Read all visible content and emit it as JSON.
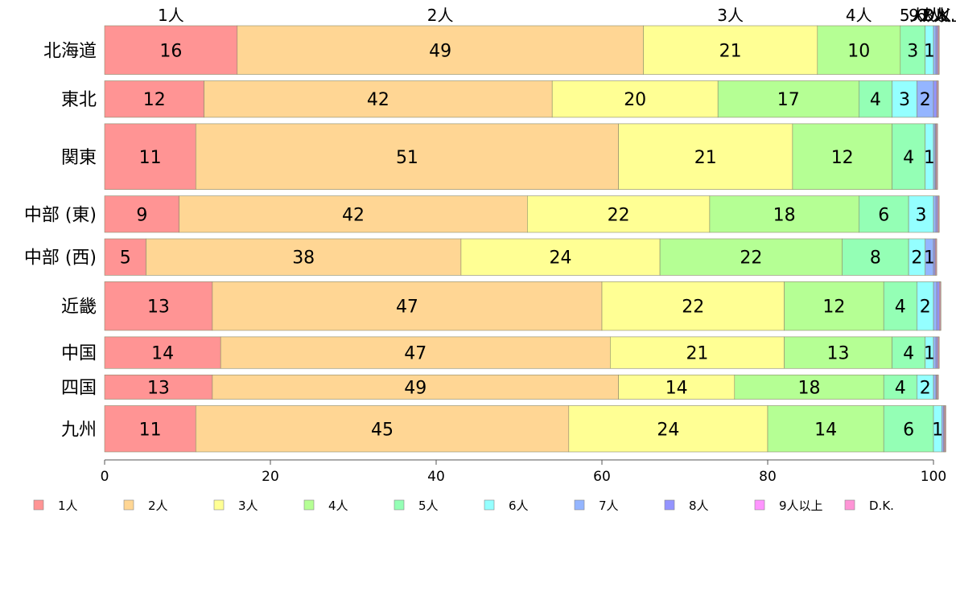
{
  "chart_data": {
    "type": "bar",
    "orientation": "horizontal",
    "stacked": true,
    "title": "",
    "xlabel": "",
    "ylabel": "",
    "xlim": [
      0,
      100
    ],
    "x_ticks": [
      0,
      20,
      40,
      60,
      80,
      100
    ],
    "grid": false,
    "legend_position": "bottom",
    "categories": [
      "北海道",
      "東北",
      "関東",
      "中部 (東)",
      "中部 (西)",
      "近畿",
      "中国",
      "四国",
      "九州"
    ],
    "category_weights": [
      1.0,
      0.75,
      1.35,
      0.75,
      0.75,
      1.0,
      0.65,
      0.5,
      0.95
    ],
    "series": [
      {
        "name": "1人",
        "color": "#ff9494",
        "values": [
          16,
          12,
          11,
          9,
          5,
          13,
          14,
          13,
          11
        ]
      },
      {
        "name": "2人",
        "color": "#ffd694",
        "values": [
          49,
          42,
          51,
          42,
          38,
          47,
          47,
          49,
          45
        ]
      },
      {
        "name": "3人",
        "color": "#ffff94",
        "values": [
          21,
          20,
          21,
          22,
          24,
          22,
          21,
          14,
          24
        ]
      },
      {
        "name": "4人",
        "color": "#b5ff94",
        "values": [
          10,
          17,
          12,
          18,
          22,
          12,
          13,
          18,
          14
        ]
      },
      {
        "name": "5人",
        "color": "#94ffb5",
        "values": [
          3,
          4,
          4,
          6,
          8,
          4,
          4,
          4,
          6
        ]
      },
      {
        "name": "6人",
        "color": "#94ffff",
        "values": [
          1,
          3,
          1,
          3,
          2,
          2,
          1,
          2,
          1
        ]
      },
      {
        "name": "7人",
        "color": "#94b5ff",
        "values": [
          0.3,
          2,
          0.2,
          0.3,
          1,
          0.4,
          0.3,
          0.3,
          0.2
        ]
      },
      {
        "name": "8人",
        "color": "#9494ff",
        "values": [
          0.2,
          0.4,
          0.1,
          0.2,
          0.2,
          0.3,
          0.2,
          0.1,
          0.1
        ]
      },
      {
        "name": "9人以上",
        "color": "#ff94ff",
        "values": [
          0.1,
          0.1,
          0.1,
          0.1,
          0.1,
          0.1,
          0.1,
          0.1,
          0.1
        ]
      },
      {
        "name": "D.K.",
        "color": "#ff94d6",
        "values": [
          0.1,
          0.1,
          0.1,
          0.1,
          0.1,
          0.1,
          0.1,
          0.1,
          0.1
        ]
      }
    ],
    "top_labels": [
      "1人",
      "2人",
      "3人",
      "4人",
      "5人",
      "6人",
      "7人",
      "8人",
      "9人以上",
      "D.K."
    ]
  }
}
